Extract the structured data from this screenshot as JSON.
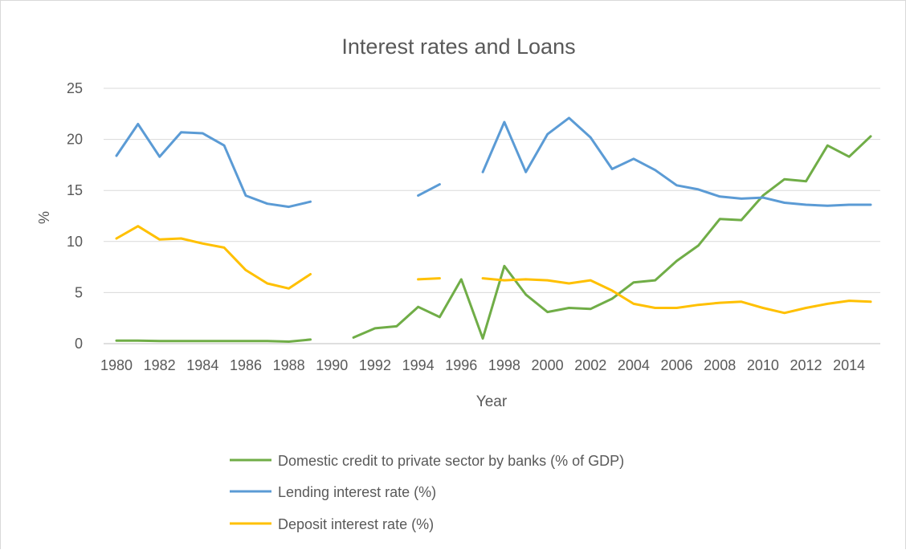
{
  "chart_data": {
    "type": "line",
    "title": "Interest rates and Loans",
    "xlabel": "Year",
    "ylabel": "%",
    "ylim": [
      0,
      25
    ],
    "yticks": [
      0,
      5,
      10,
      15,
      20,
      25
    ],
    "xlim": [
      1980,
      2015
    ],
    "xtick_labels": [
      "1980",
      "1982",
      "1984",
      "1986",
      "1988",
      "1990",
      "1992",
      "1994",
      "1996",
      "1998",
      "2000",
      "2002",
      "2004",
      "2006",
      "2008",
      "2010",
      "2012",
      "2014"
    ],
    "grid": "horizontal",
    "legend_position": "bottom",
    "x": [
      1980,
      1981,
      1982,
      1983,
      1984,
      1985,
      1986,
      1987,
      1988,
      1989,
      1990,
      1991,
      1992,
      1993,
      1994,
      1995,
      1996,
      1997,
      1998,
      1999,
      2000,
      2001,
      2002,
      2003,
      2004,
      2005,
      2006,
      2007,
      2008,
      2009,
      2010,
      2011,
      2012,
      2013,
      2014,
      2015
    ],
    "series": [
      {
        "name": "Domestic credit to private sector by banks (% of GDP)",
        "color": "#70ad47",
        "values": [
          0.3,
          0.3,
          0.25,
          0.25,
          0.25,
          0.25,
          0.25,
          0.25,
          0.2,
          0.4,
          null,
          0.6,
          1.5,
          1.7,
          3.6,
          2.6,
          6.3,
          0.5,
          7.6,
          4.8,
          3.1,
          3.5,
          3.4,
          4.4,
          6.0,
          6.2,
          8.1,
          9.6,
          12.2,
          12.1,
          14.5,
          16.1,
          15.9,
          19.4,
          18.3,
          20.3
        ]
      },
      {
        "name": "Lending interest rate (%)",
        "color": "#5b9bd5",
        "values": [
          18.4,
          21.5,
          18.3,
          20.7,
          20.6,
          19.4,
          14.5,
          13.7,
          13.4,
          13.9,
          null,
          null,
          null,
          null,
          14.5,
          15.6,
          null,
          16.8,
          21.7,
          16.8,
          20.5,
          22.1,
          20.2,
          17.1,
          18.1,
          17.0,
          15.5,
          15.1,
          14.4,
          14.2,
          14.3,
          13.8,
          13.6,
          13.5,
          13.6,
          13.6
        ]
      },
      {
        "name": "Deposit interest rate (%)",
        "color": "#ffc000",
        "values": [
          10.3,
          11.5,
          10.2,
          10.3,
          9.8,
          9.4,
          7.2,
          5.9,
          5.4,
          6.8,
          null,
          null,
          null,
          null,
          6.3,
          6.4,
          null,
          6.4,
          6.2,
          6.3,
          6.2,
          5.9,
          6.2,
          5.2,
          3.9,
          3.5,
          3.5,
          3.8,
          4.0,
          4.1,
          3.5,
          3.0,
          3.5,
          3.9,
          4.2,
          4.1
        ]
      }
    ]
  }
}
